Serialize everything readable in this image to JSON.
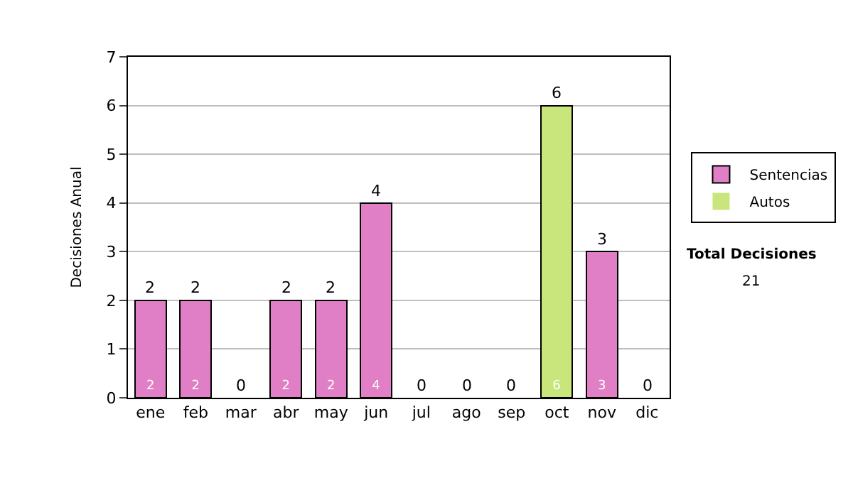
{
  "chart_data": {
    "type": "bar",
    "stacked": true,
    "ylabel": "Decisiones Anual",
    "categories": [
      "ene",
      "feb",
      "mar",
      "abr",
      "may",
      "jun",
      "jul",
      "ago",
      "sep",
      "oct",
      "nov",
      "dic"
    ],
    "series": [
      {
        "name": "Sentencias",
        "color": "#e07fc6",
        "values": [
          2,
          2,
          0,
          2,
          2,
          4,
          0,
          0,
          0,
          0,
          3,
          0
        ],
        "value_labels": [
          "2",
          "2",
          null,
          "2",
          "2",
          "4",
          null,
          null,
          null,
          null,
          "3",
          null
        ]
      },
      {
        "name": "Autos",
        "color": "#c8e67c",
        "values": [
          0,
          0,
          0,
          0,
          0,
          0,
          0,
          0,
          0,
          6,
          0,
          0
        ],
        "value_labels": [
          null,
          null,
          null,
          null,
          null,
          null,
          null,
          null,
          null,
          "6",
          null,
          null
        ]
      }
    ],
    "totals": [
      "2",
      "2",
      "0",
      "2",
      "2",
      "4",
      "0",
      "0",
      "0",
      "6",
      "3",
      "0"
    ],
    "ylim": [
      0,
      7
    ],
    "yticks": [
      0,
      1,
      2,
      3,
      4,
      5,
      6,
      7
    ],
    "grid": "y",
    "legend": "right",
    "annotations": [
      "Total Decisiones",
      "21"
    ]
  }
}
